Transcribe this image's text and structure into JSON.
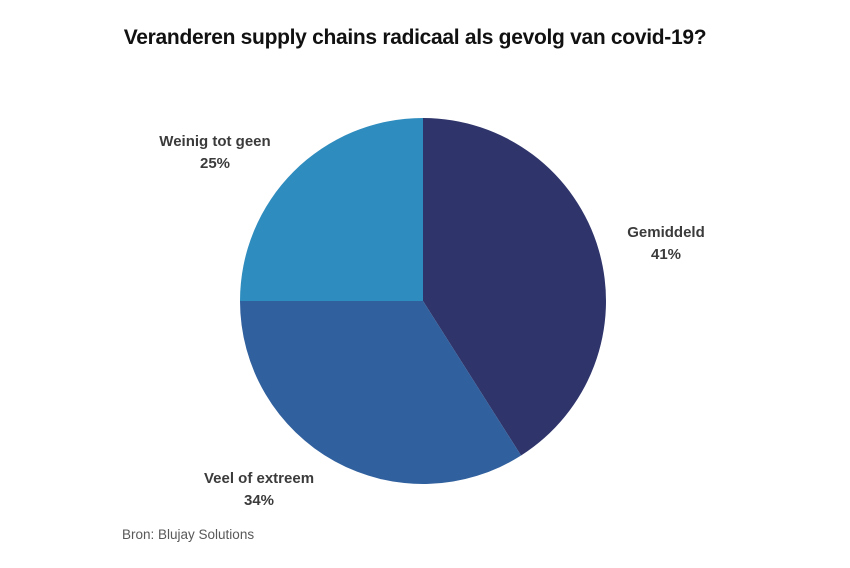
{
  "chart_data": {
    "type": "pie",
    "title": "Veranderen supply chains radicaal als gevolg van covid-19?",
    "segments": [
      {
        "label": "Gemiddeld",
        "value": 41,
        "value_label": "41%",
        "color": "#2F356B"
      },
      {
        "label": "Veel of extreem",
        "value": 34,
        "value_label": "34%",
        "color": "#30609E"
      },
      {
        "label": "Weinig tot geen",
        "value": 25,
        "value_label": "25%",
        "color": "#2E8CBE"
      }
    ],
    "start_angle_deg": 0,
    "direction": "clockwise",
    "legend_position": "outside-labels",
    "source": "Bron: Blujay Solutions"
  }
}
